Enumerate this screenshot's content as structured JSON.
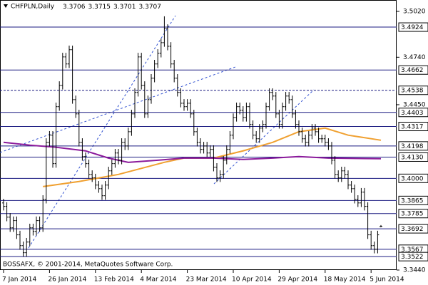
{
  "chart_data": {
    "type": "ohlc",
    "title": "CHFPLN,Daily",
    "title_values": [
      3.3706,
      3.3715,
      3.3701,
      3.3707
    ],
    "footer": "BOSSAFX, © 2001-2014, MetaQuotes Software Corp.",
    "color": "#000000",
    "open": [
      3.385,
      3.3829,
      3.3763,
      3.3698,
      3.3742,
      3.3655,
      3.3589,
      3.3546,
      3.3611,
      3.3698,
      3.3676,
      3.3742,
      3.3698,
      3.3872,
      3.422,
      3.4264,
      3.409,
      3.4438,
      3.4568,
      3.4742,
      3.4699,
      3.4786,
      3.4481,
      3.4394,
      3.422,
      3.4133,
      3.409,
      3.4024,
      3.4003,
      3.3959,
      3.3937,
      3.3894,
      3.3959,
      3.4046,
      3.409,
      3.4155,
      3.4111,
      3.422,
      3.4198,
      3.4285,
      3.4394,
      3.4525,
      3.4742,
      3.4568,
      3.4394,
      3.4481,
      3.4612,
      3.4699,
      3.4764,
      3.4829,
      3.4916,
      3.4807,
      3.4699,
      3.4612,
      3.4525,
      3.4459,
      3.4438,
      3.4459,
      3.4394,
      3.4285,
      3.422,
      3.4177,
      3.4198,
      3.4155,
      3.4177,
      3.4068,
      3.4003,
      3.4024,
      3.4111,
      3.4177,
      3.4264,
      3.4372,
      3.4438,
      3.4416,
      3.4372,
      3.4438,
      3.4329,
      3.4264,
      3.4242,
      3.4307,
      3.4329,
      3.4438,
      3.4525,
      3.4503,
      3.4394,
      3.4329,
      3.4438,
      3.4503,
      3.4481,
      3.4394,
      3.4329,
      3.4285,
      3.4242,
      3.422,
      3.4264,
      3.4307,
      3.4285,
      3.4242,
      3.4242,
      3.422,
      3.4198,
      3.4111,
      3.4024,
      3.4003,
      3.4046,
      3.4024,
      3.3959,
      3.3937,
      3.3872,
      3.385,
      3.3916,
      3.3829,
      3.3655,
      3.3589,
      3.3567,
      3.3706
    ],
    "high": [
      3.3875,
      3.3854,
      3.3788,
      3.3767,
      3.3767,
      3.368,
      3.3614,
      3.3636,
      3.3723,
      3.3723,
      3.3767,
      3.3767,
      3.3897,
      3.4245,
      3.4289,
      3.4289,
      3.4463,
      3.4593,
      3.4767,
      3.4767,
      3.4811,
      3.4811,
      3.4506,
      3.4419,
      3.4245,
      3.4158,
      3.4115,
      3.4049,
      3.4028,
      3.3984,
      3.3962,
      3.3984,
      3.4071,
      3.4115,
      3.418,
      3.418,
      3.4245,
      3.4245,
      3.431,
      3.4419,
      3.455,
      3.4767,
      3.4767,
      3.4593,
      3.4506,
      3.4637,
      3.4724,
      3.4789,
      3.4854,
      3.499,
      3.4941,
      3.4832,
      3.4724,
      3.4637,
      3.455,
      3.4484,
      3.4484,
      3.4484,
      3.4419,
      3.431,
      3.4245,
      3.4223,
      3.4223,
      3.4202,
      3.4202,
      3.4093,
      3.4049,
      3.4136,
      3.4202,
      3.4289,
      3.4397,
      3.4463,
      3.4463,
      3.4441,
      3.4463,
      3.4463,
      3.4354,
      3.4289,
      3.4332,
      3.4354,
      3.4463,
      3.455,
      3.455,
      3.4528,
      3.4419,
      3.4463,
      3.4528,
      3.4528,
      3.4506,
      3.4419,
      3.4354,
      3.431,
      3.4267,
      3.4289,
      3.4332,
      3.4332,
      3.431,
      3.4267,
      3.4267,
      3.4245,
      3.4223,
      3.4136,
      3.4049,
      3.4071,
      3.4071,
      3.4049,
      3.3984,
      3.3962,
      3.3897,
      3.3941,
      3.3941,
      3.3854,
      3.368,
      3.3614,
      3.368,
      3.3715
    ],
    "low": [
      3.3804,
      3.3738,
      3.3673,
      3.3673,
      3.363,
      3.3564,
      3.3521,
      3.3521,
      3.3586,
      3.3651,
      3.3651,
      3.3673,
      3.3673,
      3.3847,
      3.4195,
      3.4065,
      3.4065,
      3.4413,
      3.4543,
      3.4674,
      3.4674,
      3.4456,
      3.4369,
      3.4195,
      3.4108,
      3.4065,
      3.3999,
      3.3978,
      3.3934,
      3.3912,
      3.3869,
      3.3869,
      3.3934,
      3.4021,
      3.4065,
      3.4086,
      3.4086,
      3.4173,
      3.4173,
      3.426,
      3.4369,
      3.45,
      3.4543,
      3.4369,
      3.4369,
      3.4456,
      3.4587,
      3.4674,
      3.4739,
      3.4804,
      3.4782,
      3.4674,
      3.4587,
      3.45,
      3.4434,
      3.4413,
      3.4413,
      3.4369,
      3.426,
      3.4195,
      3.4152,
      3.4152,
      3.413,
      3.413,
      3.4043,
      3.3978,
      3.3978,
      3.3999,
      3.4086,
      3.4152,
      3.4239,
      3.4347,
      3.4391,
      3.4347,
      3.4347,
      3.4304,
      3.4239,
      3.4217,
      3.4217,
      3.4282,
      3.4304,
      3.4413,
      3.4478,
      3.4369,
      3.4304,
      3.4304,
      3.4413,
      3.4456,
      3.4369,
      3.4304,
      3.426,
      3.4217,
      3.4195,
      3.4195,
      3.4239,
      3.426,
      3.4217,
      3.4217,
      3.4195,
      3.4173,
      3.4086,
      3.3999,
      3.3978,
      3.3978,
      3.3999,
      3.3934,
      3.3912,
      3.3847,
      3.3825,
      3.3825,
      3.3804,
      3.363,
      3.3564,
      3.3542,
      3.3542,
      3.3701
    ],
    "close": [
      3.3829,
      3.3763,
      3.3698,
      3.3742,
      3.3655,
      3.3589,
      3.3546,
      3.3611,
      3.3698,
      3.3676,
      3.3742,
      3.3698,
      3.3872,
      3.422,
      3.4264,
      3.409,
      3.4438,
      3.4568,
      3.4742,
      3.4699,
      3.4786,
      3.4481,
      3.4394,
      3.422,
      3.4133,
      3.409,
      3.4024,
      3.4003,
      3.3959,
      3.3937,
      3.3894,
      3.3959,
      3.4046,
      3.409,
      3.4155,
      3.4111,
      3.422,
      3.4198,
      3.4285,
      3.4394,
      3.4525,
      3.4742,
      3.4568,
      3.4394,
      3.4481,
      3.4612,
      3.4699,
      3.4764,
      3.4829,
      3.4916,
      3.4807,
      3.4699,
      3.4612,
      3.4525,
      3.4459,
      3.4438,
      3.4459,
      3.4394,
      3.4285,
      3.422,
      3.4177,
      3.4198,
      3.4155,
      3.4177,
      3.4068,
      3.4003,
      3.4024,
      3.4111,
      3.4177,
      3.4264,
      3.4372,
      3.4438,
      3.4416,
      3.4372,
      3.4438,
      3.4329,
      3.4264,
      3.4242,
      3.4307,
      3.4329,
      3.4438,
      3.4525,
      3.4503,
      3.4394,
      3.4329,
      3.4438,
      3.4503,
      3.4481,
      3.4394,
      3.4329,
      3.4285,
      3.4242,
      3.422,
      3.4264,
      3.4307,
      3.4285,
      3.4242,
      3.4242,
      3.422,
      3.4198,
      3.4111,
      3.4024,
      3.4003,
      3.4046,
      3.4024,
      3.3959,
      3.3937,
      3.3872,
      3.385,
      3.3916,
      3.3829,
      3.3655,
      3.3589,
      3.3567,
      3.3655,
      3.3707
    ],
    "moving_averages": [
      {
        "color": "#f0a030",
        "x": [
          12,
          23,
          35,
          49,
          55,
          64,
          73,
          82,
          90,
          98,
          105,
          115
        ],
        "values": [
          3.395,
          3.3981,
          3.4024,
          3.4098,
          3.4124,
          3.4124,
          3.4168,
          3.422,
          3.4285,
          3.4307,
          3.4264,
          3.4233
        ]
      },
      {
        "color": "#8b1a9b",
        "x": [
          0,
          8,
          16,
          25,
          32,
          38,
          47,
          55,
          64,
          73,
          82,
          90,
          99,
          115
        ],
        "values": [
          3.422,
          3.4203,
          3.419,
          3.4168,
          3.4124,
          3.4098,
          3.4111,
          3.4124,
          3.4124,
          3.4116,
          3.4124,
          3.4133,
          3.4124,
          3.412
        ]
      }
    ],
    "xlim": [
      0,
      115
    ],
    "xticks": [
      {
        "value": 0,
        "label": "7 Jan 2014"
      },
      {
        "value": 14,
        "label": "26 Jan 2014"
      },
      {
        "value": 28,
        "label": "13 Feb 2014"
      },
      {
        "value": 42,
        "label": "4 Mar 2014"
      },
      {
        "value": 56,
        "label": "23 Mar 2014"
      },
      {
        "value": 70,
        "label": "10 Apr 2014"
      },
      {
        "value": 84,
        "label": "29 Apr 2014"
      },
      {
        "value": 98,
        "label": "18 May 2014"
      },
      {
        "value": 112,
        "label": "5 Jun 2014"
      }
    ],
    "ylim": [
      3.344,
      3.502
    ],
    "yticks": [
      {
        "value": 3.502,
        "label": "3.5020"
      },
      {
        "value": 3.474,
        "label": "3.4740"
      },
      {
        "value": 3.445,
        "label": "3.4450"
      },
      {
        "value": 3.344,
        "label": "3.3440"
      }
    ],
    "level_color": "#1a1a80",
    "levels": [
      {
        "value": 3.4924,
        "label": "3.4924",
        "style": "solid"
      },
      {
        "value": 3.4662,
        "label": "3.4662",
        "style": "solid"
      },
      {
        "value": 3.4538,
        "label": "3.4538",
        "style": "dashed"
      },
      {
        "value": 3.4403,
        "label": "3.4403",
        "style": "solid"
      },
      {
        "value": 3.4317,
        "label": "3.4317",
        "style": "solid"
      },
      {
        "value": 3.4198,
        "label": "3.4198",
        "style": "solid"
      },
      {
        "value": 3.413,
        "label": "3.4130",
        "style": "solid"
      },
      {
        "value": 3.4,
        "label": "3.4000",
        "style": "solid"
      },
      {
        "value": 3.3865,
        "label": "3.3865",
        "style": "solid"
      },
      {
        "value": 3.3785,
        "label": "3.3785",
        "style": "solid"
      },
      {
        "value": 3.3692,
        "label": "3.3692",
        "style": "solid"
      },
      {
        "value": 3.3567,
        "label": "3.3567",
        "style": "solid"
      },
      {
        "value": 3.3522,
        "label": "3.3522",
        "style": "solid"
      }
    ]
  }
}
